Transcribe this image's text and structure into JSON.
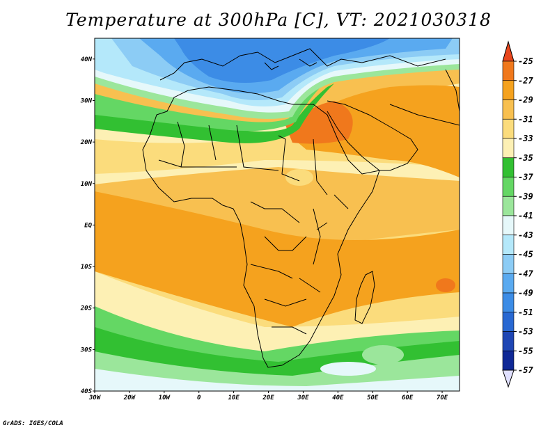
{
  "title": "Temperature at 300hPa [C], VT: 2021030318",
  "footer": "GrADS: IGES/COLA",
  "map": {
    "lat_range": [
      -40,
      45
    ],
    "lon_range": [
      -30,
      75
    ],
    "lat_labels": [
      "40N",
      "30N",
      "20N",
      "10N",
      "EQ",
      "10S",
      "20S",
      "30S",
      "40S"
    ],
    "lat_values": [
      40,
      30,
      20,
      10,
      0,
      -10,
      -20,
      -30,
      -40
    ],
    "lon_labels": [
      "30W",
      "20W",
      "10W",
      "0",
      "10E",
      "20E",
      "30E",
      "40E",
      "50E",
      "60E",
      "70E"
    ],
    "lon_values": [
      -30,
      -20,
      -10,
      0,
      10,
      20,
      30,
      40,
      50,
      60,
      70
    ]
  },
  "colorbar": {
    "labels": [
      "-25",
      "-27",
      "-29",
      "-31",
      "-33",
      "-35",
      "-37",
      "-39",
      "-41",
      "-43",
      "-45",
      "-47",
      "-49",
      "-51",
      "-53",
      "-55",
      "-57"
    ],
    "colors": [
      "#e8461c",
      "#f0781c",
      "#f5a21e",
      "#f8c050",
      "#fbdc7c",
      "#fdf0b4",
      "#32c032",
      "#64d764",
      "#9be69b",
      "#e6f8fa",
      "#b4e8fa",
      "#8cccf5",
      "#5aaaf0",
      "#3c8ce6",
      "#2868d2",
      "#1e46b4",
      "#0f2896",
      "#000a64"
    ],
    "top_color": "#e8461c",
    "bottom_color": "#e0e0ff"
  },
  "fill_colors": {
    "orange_dark": "#f0781c",
    "orange": "#f5a21e",
    "orange_light": "#f8c050",
    "yellow": "#fbdc7c",
    "cream": "#fdf0b4",
    "green": "#32c032",
    "green_mid": "#64d764",
    "green_light": "#9be69b",
    "cyan_pale": "#e6f8fa",
    "blue_pale": "#b4e8fa",
    "blue_light": "#8cccf5",
    "blue": "#5aaaf0",
    "blue_mid": "#3c8ce6"
  }
}
